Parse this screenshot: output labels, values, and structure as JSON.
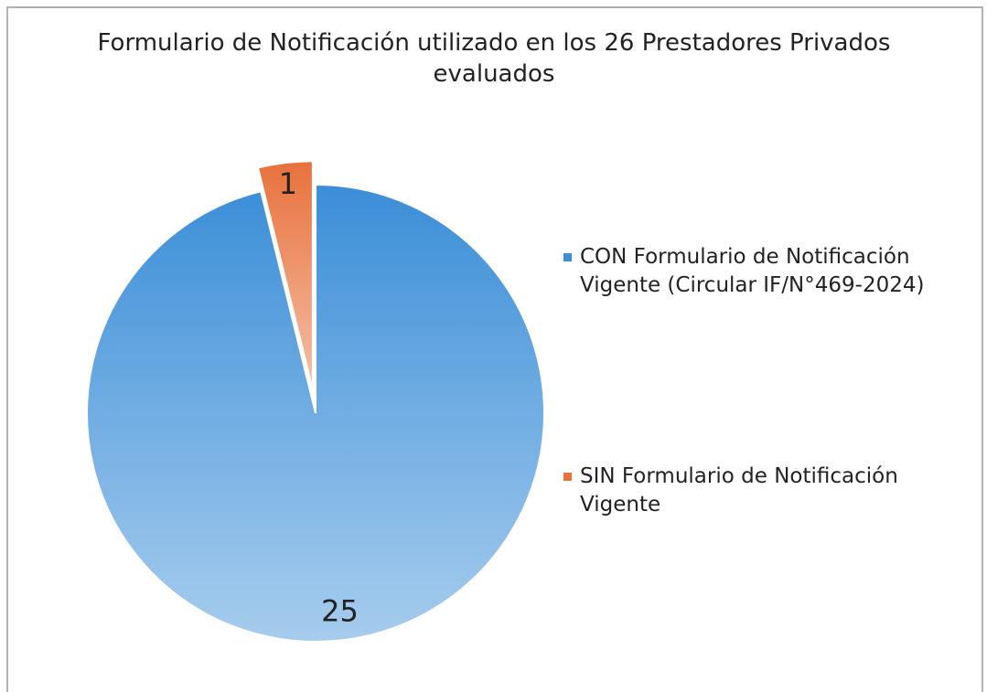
{
  "chart_data": {
    "type": "pie",
    "title": "Formulario de Notificación utilizado en los 26 Prestadores Privados evaluados",
    "categories": [
      "CON Formulario de Notificación Vigente (Circular IF/N°469-2024)",
      "SIN Formulario de Notificación Vigente"
    ],
    "values": [
      25,
      1
    ],
    "colors": [
      "#3b8ed8",
      "#e8713c"
    ],
    "legend": "right"
  }
}
